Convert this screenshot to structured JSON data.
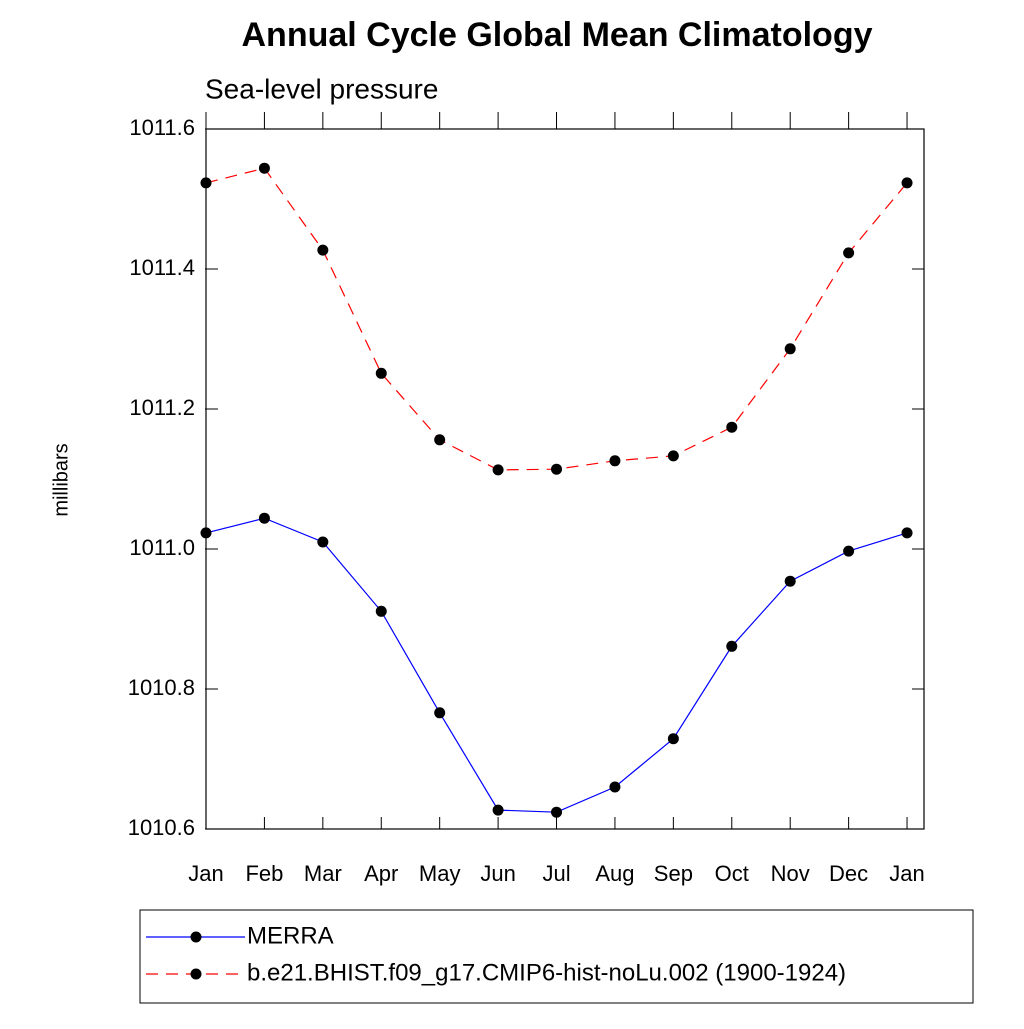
{
  "chart_data": {
    "type": "line",
    "title": "Annual Cycle Global Mean Climatology",
    "subtitle": "Sea-level pressure",
    "y_label": "millibars",
    "categories": [
      "Jan",
      "Feb",
      "Mar",
      "Apr",
      "May",
      "Jun",
      "Jul",
      "Aug",
      "Sep",
      "Oct",
      "Nov",
      "Dec",
      "Jan"
    ],
    "series": [
      {
        "name": "MERRA",
        "color": "#0000ff",
        "line_style": "solid",
        "values": [
          1011.023,
          1011.044,
          1011.01,
          1010.911,
          1010.766,
          1010.627,
          1010.624,
          1010.66,
          1010.729,
          1010.861,
          1010.954,
          1010.997,
          1011.023
        ]
      },
      {
        "name": "b.e21.BHIST.f09_g17.CMIP6-hist-noLu.002 (1900-1924)",
        "color": "#ff0000",
        "line_style": "dashed",
        "values": [
          1011.523,
          1011.544,
          1011.427,
          1011.251,
          1011.156,
          1011.113,
          1011.114,
          1011.126,
          1011.133,
          1011.174,
          1011.286,
          1011.423,
          1011.523
        ]
      }
    ],
    "ylim": [
      1010.6,
      1011.6
    ],
    "yticks": [
      1010.6,
      1010.8,
      {
        "value": 1011,
        "label": "1011.0"
      },
      1011.2,
      1011.4,
      1011.6
    ],
    "grid": false
  }
}
